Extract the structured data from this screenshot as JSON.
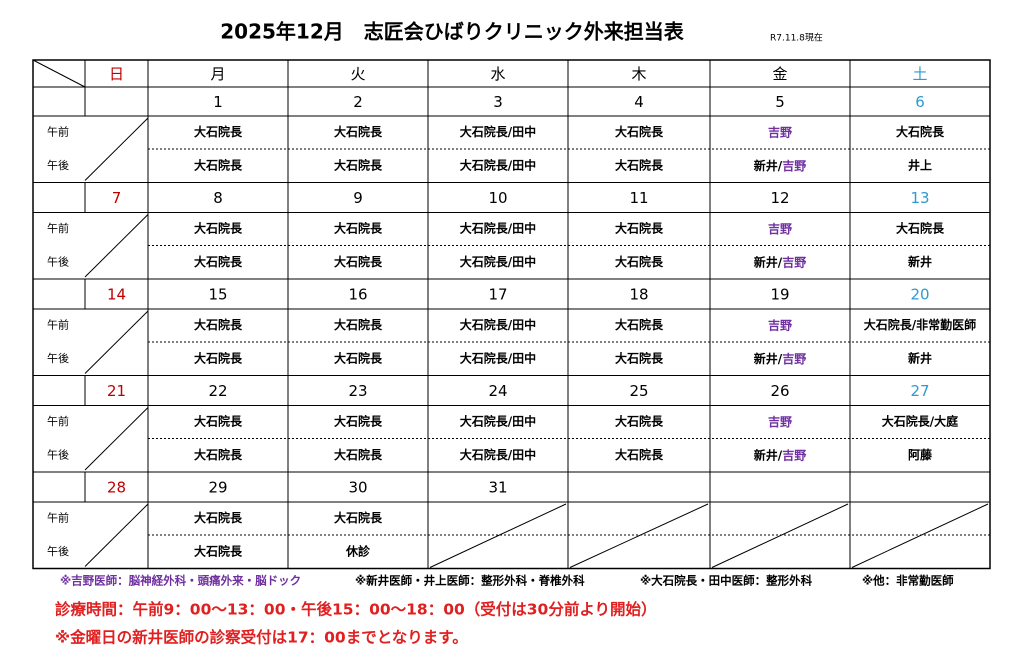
{
  "title": "2025年12月　志匠会ひばりクリニック外来担当表",
  "as_of": "R7.11.8現在",
  "weekdays": [
    "日",
    "月",
    "火",
    "水",
    "木",
    "金",
    "土"
  ],
  "weekday_colors": [
    "#c00000",
    "#000000",
    "#000000",
    "#000000",
    "#000000",
    "#000000",
    "#2e9bd1"
  ],
  "shift_labels": [
    "午前",
    "午後"
  ],
  "weeks": [
    {
      "dates": [
        null,
        1,
        2,
        3,
        4,
        5,
        6
      ],
      "am": [
        null,
        "大石院長",
        "大石院長",
        "大石院長/田中",
        "大石院長",
        [
          {
            "text": "吉野",
            "color": "#7030a0"
          }
        ],
        "大石院長"
      ],
      "pm": [
        null,
        "大石院長",
        "大石院長",
        "大石院長/田中",
        "大石院長",
        [
          "新井/",
          {
            "text": "吉野",
            "color": "#7030a0"
          }
        ],
        "井上"
      ]
    },
    {
      "dates": [
        7,
        8,
        9,
        10,
        11,
        12,
        13
      ],
      "am": [
        null,
        "大石院長",
        "大石院長",
        "大石院長/田中",
        "大石院長",
        [
          {
            "text": "吉野",
            "color": "#7030a0"
          }
        ],
        "大石院長"
      ],
      "pm": [
        null,
        "大石院長",
        "大石院長",
        "大石院長/田中",
        "大石院長",
        [
          "新井/",
          {
            "text": "吉野",
            "color": "#7030a0"
          }
        ],
        "新井"
      ]
    },
    {
      "dates": [
        14,
        15,
        16,
        17,
        18,
        19,
        20
      ],
      "am": [
        null,
        "大石院長",
        "大石院長",
        "大石院長/田中",
        "大石院長",
        [
          {
            "text": "吉野",
            "color": "#7030a0"
          }
        ],
        "大石院長/非常勤医師"
      ],
      "pm": [
        null,
        "大石院長",
        "大石院長",
        "大石院長/田中",
        "大石院長",
        [
          "新井/",
          {
            "text": "吉野",
            "color": "#7030a0"
          }
        ],
        "新井"
      ]
    },
    {
      "dates": [
        21,
        22,
        23,
        24,
        25,
        26,
        27
      ],
      "am": [
        null,
        "大石院長",
        "大石院長",
        "大石院長/田中",
        "大石院長",
        [
          {
            "text": "吉野",
            "color": "#7030a0"
          }
        ],
        "大石院長/大庭"
      ],
      "pm": [
        null,
        "大石院長",
        "大石院長",
        "大石院長/田中",
        "大石院長",
        [
          "新井/",
          {
            "text": "吉野",
            "color": "#7030a0"
          }
        ],
        "阿藤"
      ]
    },
    {
      "dates": [
        28,
        29,
        30,
        31,
        null,
        null,
        null
      ],
      "am": [
        null,
        "大石院長",
        "大石院長",
        null,
        null,
        null,
        null
      ],
      "pm": [
        null,
        "大石院長",
        "休診",
        null,
        null,
        null,
        null
      ]
    }
  ],
  "notes": [
    {
      "text": "※吉野医師：脳神経外科・頭痛外来・脳ドック",
      "color": "#7030a0"
    },
    {
      "text": "※新井医師・井上医師：整形外科・脊椎外科",
      "color": "#000000"
    },
    {
      "text": "※大石院長・田中医師：整形外科",
      "color": "#000000"
    },
    {
      "text": "※他：非常勤医師",
      "color": "#000000"
    }
  ],
  "hours": "診療時間：午前9：00～13：00・午後15：00～18：00（受付は30分前より開始）",
  "friday_note": "※金曜日の新井医師の診察受付は17：00までとなります。",
  "footer_color": "#e02020"
}
